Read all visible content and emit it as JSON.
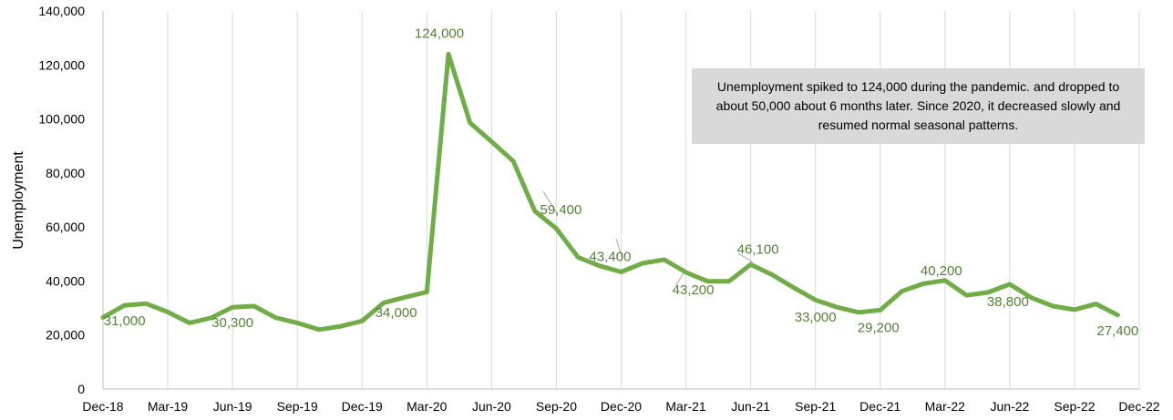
{
  "chart_data": {
    "type": "line",
    "ylabel": "Unemployment",
    "xlabel": "",
    "ylim": [
      0,
      140000
    ],
    "y_ticks": [
      "0",
      "20,000",
      "40,000",
      "60,000",
      "80,000",
      "100,000",
      "120,000",
      "140,000"
    ],
    "x_ticks": [
      "Dec-18",
      "Mar-19",
      "Jun-19",
      "Sep-19",
      "Dec-19",
      "Mar-20",
      "Jun-20",
      "Sep-20",
      "Dec-20",
      "Mar-21",
      "Jun-21",
      "Sep-21",
      "Dec-21",
      "Mar-22",
      "Jun-22",
      "Sep-22",
      "Dec-22"
    ],
    "grid": "vertical",
    "line_color": "#70ad47",
    "label_color": "#548235",
    "series": [
      {
        "x": [
          "Dec-18",
          "Jan-19",
          "Feb-19",
          "Mar-19",
          "Apr-19",
          "May-19",
          "Jun-19",
          "Jul-19",
          "Aug-19",
          "Sep-19",
          "Oct-19",
          "Nov-19",
          "Dec-19",
          "Jan-20",
          "Feb-20",
          "Mar-20",
          "Apr-20",
          "May-20",
          "Jun-20",
          "Jul-20",
          "Aug-20",
          "Sep-20",
          "Oct-20",
          "Nov-20",
          "Dec-20",
          "Jan-21",
          "Feb-21",
          "Mar-21",
          "Apr-21",
          "May-21",
          "Jun-21",
          "Jul-21",
          "Aug-21",
          "Sep-21",
          "Oct-21",
          "Nov-21",
          "Dec-21",
          "Jan-22",
          "Feb-22",
          "Mar-22",
          "Apr-22",
          "May-22",
          "Jun-22",
          "Jul-22",
          "Aug-22",
          "Sep-22",
          "Oct-22",
          "Nov-22"
        ],
        "values": [
          26500,
          31000,
          31600,
          28500,
          24500,
          26300,
          30300,
          30700,
          26400,
          24500,
          22000,
          23200,
          25200,
          31900,
          34000,
          35900,
          124000,
          98600,
          91600,
          84400,
          65900,
          59400,
          48800,
          45600,
          43400,
          46600,
          47900,
          43200,
          39900,
          39900,
          46100,
          42300,
          37500,
          33000,
          30300,
          28400,
          29200,
          36200,
          39000,
          40200,
          34700,
          35800,
          38800,
          33800,
          30700,
          29400,
          31500,
          27400
        ]
      }
    ],
    "data_labels": [
      {
        "index": 1,
        "text": "31,000"
      },
      {
        "index": 6,
        "text": "30,300"
      },
      {
        "index": 14,
        "text": "34,000"
      },
      {
        "index": 16,
        "text": "124,000"
      },
      {
        "index": 21,
        "text": "59,400"
      },
      {
        "index": 24,
        "text": "43,400"
      },
      {
        "index": 27,
        "text": "43,200"
      },
      {
        "index": 30,
        "text": "46,100"
      },
      {
        "index": 33,
        "text": "33,000"
      },
      {
        "index": 36,
        "text": "29,200"
      },
      {
        "index": 39,
        "text": "40,200"
      },
      {
        "index": 42,
        "text": "38,800"
      },
      {
        "index": 47,
        "text": "27,400"
      }
    ],
    "annotation": "Unemployment spiked to 124,000 during the pandemic. and dropped to about 50,000 about 6 months later. Since 2020, it decreased slowly and resumed normal seasonal patterns."
  }
}
